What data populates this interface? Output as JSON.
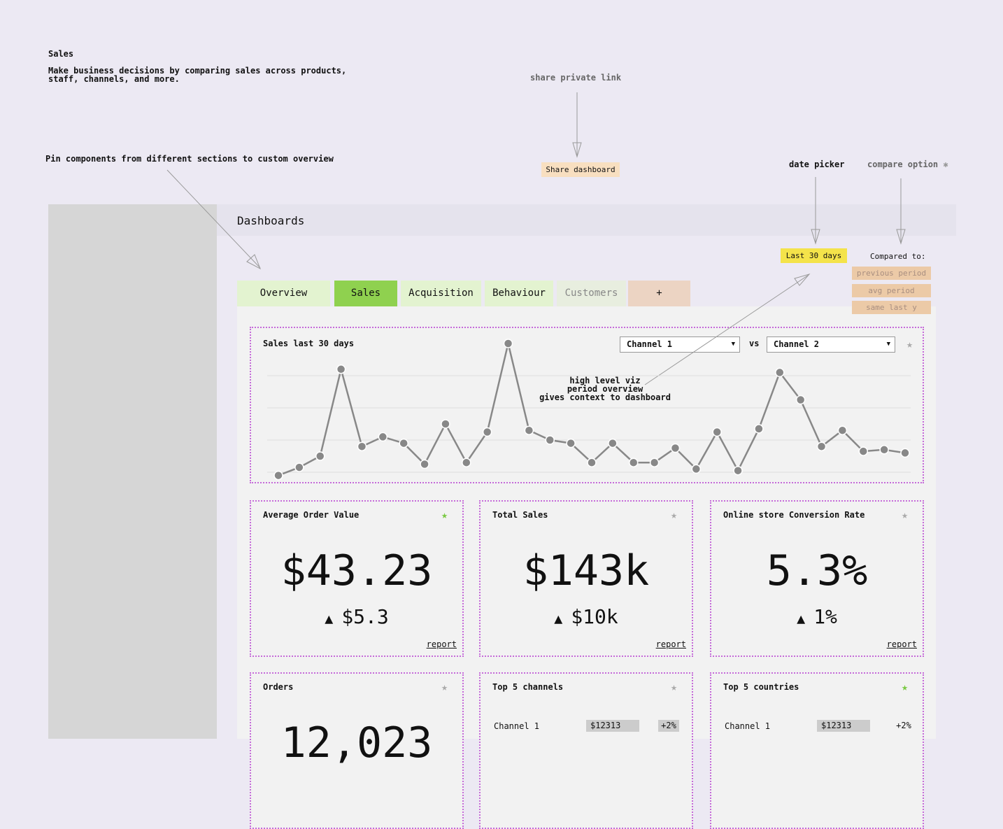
{
  "header": {
    "title": "Sales",
    "description": [
      "Make business decisions by comparing sales across products,",
      "staff, channels, and more."
    ]
  },
  "annotations": {
    "share": "share private link",
    "pin": "Pin components from different sections to custom overview",
    "date_picker": "date picker",
    "compare": "compare option",
    "viz": [
      "high level viz",
      "period overview",
      "gives context to dashboard"
    ]
  },
  "share_button": "Share dashboard",
  "page_title": "Dashboards",
  "date_range": "Last 30 days",
  "compare": {
    "label": "Compared to:",
    "options": [
      "previous period",
      "avg period",
      "same last y"
    ]
  },
  "tabs": [
    {
      "label": "Overview",
      "color": "#e3f3d0",
      "text_color": "#111"
    },
    {
      "label": "Sales",
      "color": "#8fd14f",
      "text_color": "#111"
    },
    {
      "label": "Acquisition",
      "color": "#e3f3d0",
      "text_color": "#111"
    },
    {
      "label": "Behaviour",
      "color": "#e3f3d0",
      "text_color": "#111"
    },
    {
      "label": "Customers",
      "color": "#e8eedf",
      "text_color": "#888"
    },
    {
      "label": "+",
      "color": "#ecd4c3",
      "text_color": "#111"
    }
  ],
  "chart": {
    "type": "line",
    "title": "Sales last 30 days",
    "series_a": "Channel 1",
    "connector": "vs",
    "series_b": "Channel 2",
    "color": "#888",
    "grid": true,
    "pinned": false,
    "values": [
      -0.1,
      0.15,
      0.5,
      3.2,
      0.8,
      1.1,
      0.9,
      0.25,
      1.5,
      0.3,
      1.25,
      4.0,
      1.3,
      1.0,
      0.9,
      0.3,
      0.9,
      0.3,
      0.3,
      0.75,
      0.1,
      1.25,
      0.05,
      1.35,
      3.1,
      2.25,
      0.8,
      1.3,
      0.65,
      0.7,
      0.6
    ],
    "ylim": [
      -0.5,
      4.5
    ],
    "yticks": [
      0,
      1,
      2,
      3
    ]
  },
  "cards": [
    {
      "title": "Average Order Value",
      "value": "$43.23",
      "delta": "$5.3",
      "link": "report",
      "pinned": true
    },
    {
      "title": "Total Sales",
      "value": "$143k",
      "delta": "$10k",
      "link": "report",
      "pinned": false
    },
    {
      "title": "Online store Conversion Rate",
      "value": "5.3%",
      "delta": "1%",
      "link": "report",
      "pinned": false
    },
    {
      "title": "Orders",
      "value": "12,023",
      "pinned": false
    },
    {
      "title": "Top 5 channels",
      "rows": [
        [
          "Channel 1",
          "$12313",
          "+2%"
        ]
      ],
      "pinned": false
    },
    {
      "title": "Top 5 countries",
      "rows": [
        [
          "Channel 1",
          "$12313",
          "+2%"
        ]
      ],
      "pinned": true
    }
  ]
}
